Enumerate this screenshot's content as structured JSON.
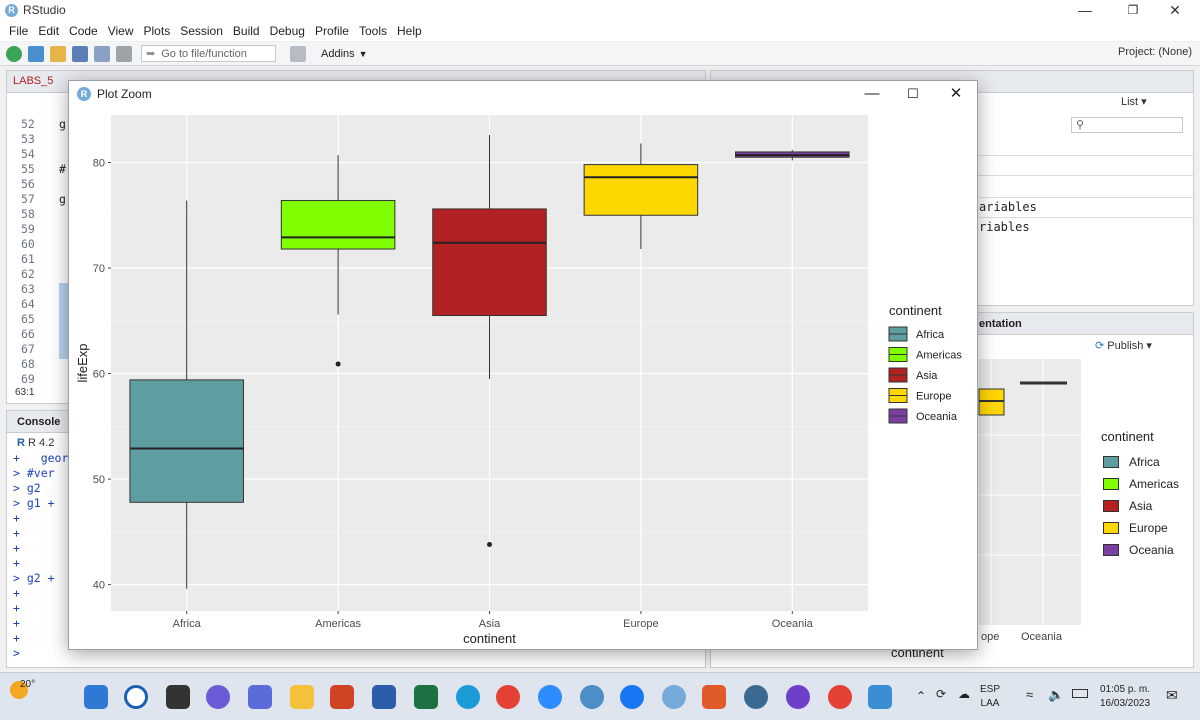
{
  "window": {
    "title": "RStudio",
    "minimize_icon": "minimize-icon",
    "maximize_icon": "maximize-icon",
    "close_icon": "close-icon"
  },
  "menu": [
    "File",
    "Edit",
    "Code",
    "View",
    "Plots",
    "Session",
    "Build",
    "Debug",
    "Profile",
    "Tools",
    "Help"
  ],
  "toolbar": {
    "goto_placeholder": "Go to file/function",
    "addins_label": "Addins",
    "project_label": "Project: (None)"
  },
  "editor": {
    "tab_label": "LABS_5",
    "line_numbers": [
      "52",
      "53",
      "54",
      "55",
      "56",
      "57",
      "58",
      "59",
      "60",
      "61",
      "62",
      "63",
      "64",
      "65",
      "66",
      "67",
      "68",
      "69"
    ],
    "line_fragments": [
      {
        "line": 0,
        "text": "g"
      },
      {
        "line": 3,
        "text": "#"
      },
      {
        "line": 5,
        "text": "g"
      },
      {
        "line": 11,
        "text": "g"
      }
    ],
    "cursor_pos": "63:1"
  },
  "console": {
    "tab_label": "Console",
    "r_version": "R 4.2",
    "lines": [
      "+   geor",
      "> #ver",
      "> g2",
      "> g1 +",
      "+",
      "+",
      "+",
      "+",
      "> g2 +",
      "+",
      "+",
      "+",
      "+",
      ">"
    ]
  },
  "env_pane": {
    "list_label": "List",
    "rows": [
      "ariables",
      "riables"
    ]
  },
  "viewer_pane": {
    "tab_label": "entation",
    "publish_label": "Publish",
    "legend_title": "continent",
    "legend_items": [
      "Africa",
      "Americas",
      "Asia",
      "Europe",
      "Oceania"
    ],
    "x_ticks": [
      "ope",
      "Oceania"
    ],
    "x_title": "continent"
  },
  "zoom_window": {
    "title": "Plot Zoom"
  },
  "chart_data": {
    "type": "boxplot",
    "xlabel": "continent",
    "ylabel": "lifeExp",
    "ylim": [
      37.5,
      84.5
    ],
    "yticks": [
      40,
      50,
      60,
      70,
      80
    ],
    "categories": [
      "Africa",
      "Americas",
      "Asia",
      "Europe",
      "Oceania"
    ],
    "legend_title": "continent",
    "legend_position": "right",
    "series": [
      {
        "name": "Africa",
        "color": "#5f9ea0",
        "min": 39.6,
        "q1": 47.8,
        "median": 52.9,
        "q3": 59.4,
        "max": 76.4,
        "outliers": []
      },
      {
        "name": "Americas",
        "color": "#7fff00",
        "min": 65.6,
        "q1": 71.8,
        "median": 72.9,
        "q3": 76.4,
        "max": 80.7,
        "outliers": [
          60.9
        ]
      },
      {
        "name": "Asia",
        "color": "#b22222",
        "min": 59.5,
        "q1": 65.5,
        "median": 72.4,
        "q3": 75.6,
        "max": 82.6,
        "outliers": [
          43.8
        ]
      },
      {
        "name": "Europe",
        "color": "#ffd700",
        "min": 71.8,
        "q1": 75.0,
        "median": 78.6,
        "q3": 79.8,
        "max": 81.8,
        "outliers": []
      },
      {
        "name": "Oceania",
        "color": "#7b3fa0",
        "min": 80.2,
        "q1": 80.5,
        "median": 80.7,
        "q3": 81.0,
        "max": 81.2,
        "outliers": []
      }
    ],
    "grid": true,
    "panel_bg": "#ebebeb"
  },
  "taskbar": {
    "temperature": "20°",
    "lang": "ESP",
    "lang_sub": "LAA",
    "time": "01:05 p. m.",
    "date": "16/03/2023"
  }
}
